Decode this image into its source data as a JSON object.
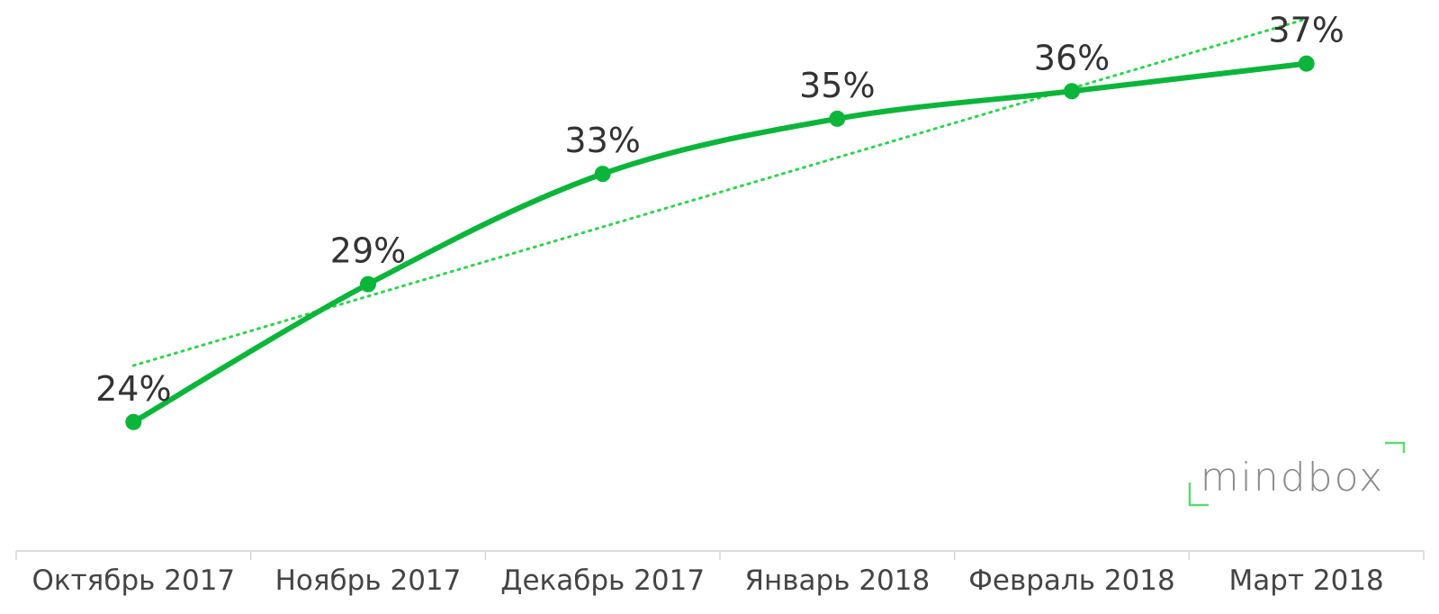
{
  "chart_data": {
    "type": "line",
    "categories": [
      "Октябрь 2017",
      "Ноябрь 2017",
      "Декабрь 2017",
      "Январь 2018",
      "Февраль 2018",
      "Март 2018"
    ],
    "values": [
      24,
      29,
      33,
      35,
      36,
      37
    ],
    "data_labels": [
      "24%",
      "29%",
      "33%",
      "35%",
      "36%",
      "37%"
    ],
    "trendline": {
      "style": "dotted",
      "type": "linear"
    },
    "title": "",
    "xlabel": "",
    "ylabel": "",
    "ylim": [
      22,
      38
    ],
    "grid": false,
    "legend": "none",
    "colors": {
      "series": "#0bb53a",
      "trendline": "#2fd34f",
      "axis": "#d4d4d4",
      "text": "#333333"
    }
  },
  "brand": {
    "text": "mindbox",
    "color": "#8a8a8a",
    "accent": "#5fd873"
  }
}
